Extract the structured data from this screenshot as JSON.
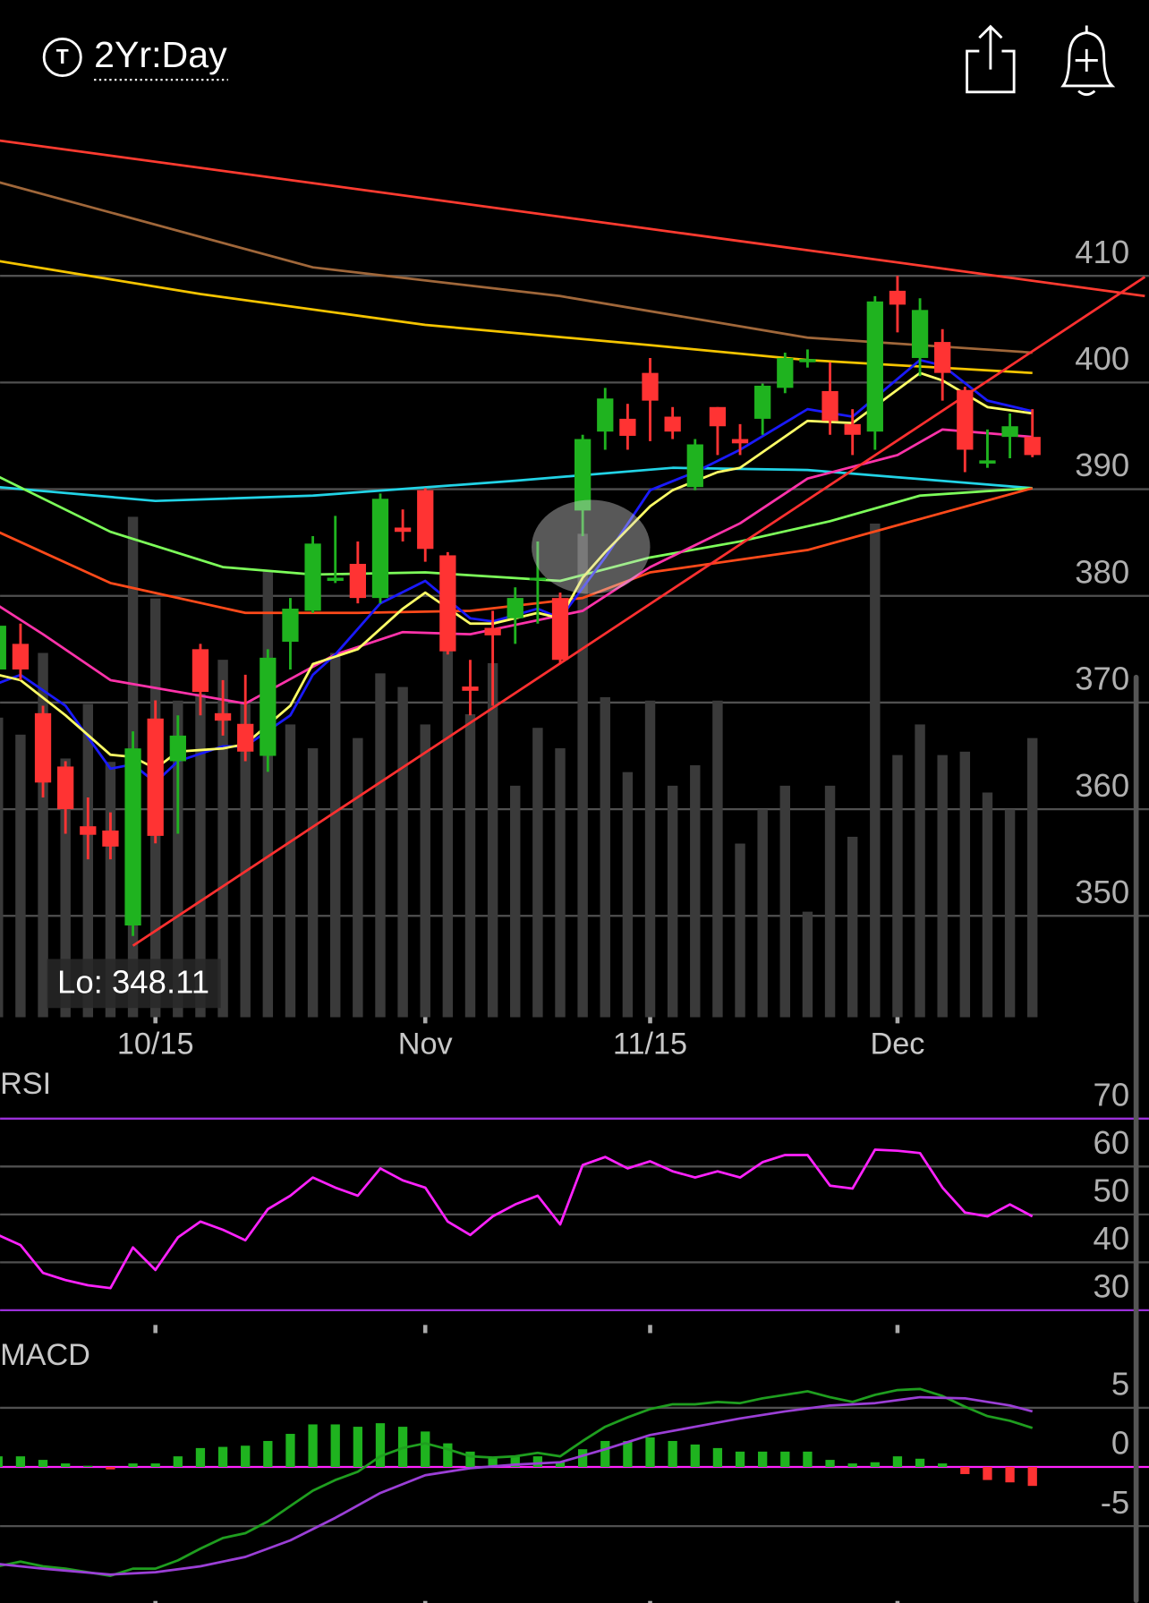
{
  "header": {
    "badge": "T",
    "timeframe": "2Yr:Day"
  },
  "chart_data": [
    {
      "type": "candlestick",
      "categories": [
        null,
        null,
        null,
        null,
        null,
        null,
        null,
        "10/15",
        null,
        null,
        null,
        null,
        null,
        null,
        null,
        null,
        null,
        null,
        null,
        "Nov",
        null,
        null,
        null,
        null,
        null,
        null,
        null,
        null,
        null,
        "11/15",
        null,
        null,
        null,
        null,
        null,
        null,
        null,
        null,
        null,
        null,
        "Dec",
        null,
        null,
        null,
        null,
        null,
        null
      ],
      "open": [
        373.1,
        375.5,
        369.0,
        364.0,
        358.4,
        358.0,
        349.1,
        368.5,
        364.5,
        375.0,
        369.0,
        368.0,
        365.0,
        375.7,
        378.6,
        381.4,
        383.0,
        379.8,
        386.4,
        389.9,
        383.8,
        371.5,
        377.0,
        377.9,
        381.5,
        379.8,
        388.0,
        395.4,
        396.6,
        400.9,
        396.8,
        390.2,
        397.7,
        394.7,
        396.6,
        399.5,
        401.9,
        399.2,
        396.1,
        395.4,
        408.6,
        402.3,
        403.8,
        399.3,
        392.4,
        394.9,
        394.9
      ],
      "high": [
        378.4,
        377.4,
        369.7,
        364.5,
        361.1,
        359.7,
        367.3,
        370.2,
        368.8,
        375.5,
        372.1,
        372.6,
        375.0,
        379.8,
        385.6,
        387.5,
        385.1,
        389.6,
        388.1,
        390.1,
        384.1,
        374.0,
        378.6,
        380.8,
        385.1,
        380.3,
        395.1,
        399.5,
        398.0,
        402.3,
        397.7,
        394.7,
        397.7,
        396.1,
        399.9,
        402.8,
        403.1,
        401.9,
        397.5,
        408.1,
        410.0,
        407.9,
        405.0,
        399.6,
        395.6,
        397.1,
        397.5
      ],
      "low": [
        372.6,
        372.1,
        361.1,
        357.7,
        355.3,
        355.3,
        348.11,
        356.8,
        357.7,
        368.8,
        366.9,
        364.5,
        363.5,
        373.1,
        378.4,
        381.2,
        379.3,
        379.3,
        385.1,
        383.2,
        374.5,
        368.8,
        369.7,
        375.5,
        377.4,
        373.6,
        385.6,
        393.7,
        393.7,
        394.5,
        394.7,
        389.9,
        393.2,
        393.2,
        395.1,
        399.0,
        401.4,
        395.1,
        393.2,
        393.7,
        404.7,
        400.6,
        398.3,
        391.6,
        392.0,
        392.9,
        393.0
      ],
      "close": [
        377.2,
        373.1,
        362.5,
        360.0,
        357.6,
        356.5,
        365.7,
        357.5,
        366.9,
        371.0,
        368.3,
        365.4,
        374.2,
        378.8,
        384.9,
        381.7,
        379.8,
        389.1,
        386.0,
        384.4,
        374.8,
        371.1,
        376.3,
        379.8,
        381.7,
        374.0,
        394.7,
        398.5,
        395.0,
        398.3,
        395.4,
        394.2,
        395.9,
        394.3,
        399.7,
        402.3,
        402.2,
        396.4,
        395.1,
        407.6,
        407.3,
        406.8,
        400.9,
        393.7,
        392.7,
        395.9,
        393.2
      ],
      "volume": [
        88,
        83,
        107,
        76,
        92,
        75,
        147,
        123,
        93,
        95,
        105,
        92,
        131,
        86,
        79,
        107,
        82,
        101,
        97,
        86,
        108,
        89,
        104,
        68,
        85,
        79,
        142,
        94,
        72,
        93,
        68,
        74,
        93,
        51,
        61,
        68,
        31,
        68,
        53,
        145,
        77,
        86,
        77,
        78,
        66,
        61,
        82
      ],
      "up_color": "#1fb31f",
      "down_color": "#ff3333",
      "volume_color": "#3a3a3a",
      "ylim": [
        340.5,
        423.4
      ],
      "yticks": [
        350,
        360,
        370,
        380,
        390,
        400,
        410
      ],
      "grid": true,
      "annotation": "Lo: 348.11",
      "overlays": [
        {
          "color": "#ff3b30",
          "x": [
            0,
            51
          ],
          "values": [
            422.7,
            408.1
          ]
        },
        {
          "color": "#a0673a",
          "x": [
            0,
            14,
            25,
            36,
            46
          ],
          "values": [
            418.8,
            410.8,
            408.1,
            404.2,
            402.8
          ]
        },
        {
          "color": "#f5c400",
          "x": [
            0,
            9,
            19,
            29,
            36,
            46
          ],
          "values": [
            411.4,
            408.3,
            405.4,
            403.5,
            402.1,
            400.9
          ]
        },
        {
          "color": "#22d3e6",
          "x": [
            0,
            7,
            14,
            23,
            30,
            36,
            46
          ],
          "values": [
            390.2,
            388.9,
            389.4,
            390.8,
            392.0,
            391.8,
            390.1
          ]
        },
        {
          "color": "#7dff5a",
          "x": [
            0,
            5,
            10,
            14,
            19,
            25,
            29,
            33,
            37,
            41,
            46
          ],
          "values": [
            391.2,
            386.0,
            382.7,
            382.0,
            382.2,
            381.4,
            383.6,
            385.1,
            387.0,
            389.4,
            390.1
          ]
        },
        {
          "color": "#ff4a1a",
          "x": [
            0,
            5,
            11,
            16,
            21,
            26,
            29,
            36,
            41,
            46
          ],
          "values": [
            386.0,
            381.2,
            378.4,
            378.4,
            378.6,
            379.8,
            382.2,
            384.3,
            387.2,
            390.1
          ]
        },
        {
          "color": "#ff33aa",
          "x": [
            0,
            2,
            5,
            11,
            15,
            18,
            21,
            26,
            29,
            33,
            36,
            40,
            42,
            46
          ],
          "values": [
            379.1,
            376.4,
            372.1,
            369.9,
            374.5,
            376.6,
            376.4,
            378.6,
            382.7,
            386.8,
            391.0,
            393.2,
            395.6,
            394.9
          ]
        },
        {
          "color": "#1a1aff",
          "x": [
            0,
            1,
            3,
            5,
            6,
            7,
            8,
            10,
            11,
            13,
            14,
            15,
            17,
            19,
            21,
            22,
            24,
            25,
            27,
            29,
            31,
            33,
            36,
            38,
            41,
            42,
            44,
            46
          ],
          "values": [
            371.8,
            372.6,
            369.7,
            363.8,
            364.2,
            362.5,
            364.5,
            365.9,
            365.9,
            368.8,
            372.6,
            374.5,
            379.3,
            381.4,
            377.9,
            377.6,
            378.8,
            377.9,
            383.6,
            389.9,
            391.6,
            393.7,
            397.5,
            396.8,
            402.1,
            401.6,
            398.3,
            397.3
          ]
        },
        {
          "color": "#ffff66",
          "x": [
            0,
            1,
            3,
            5,
            6,
            7,
            8,
            10,
            11,
            13,
            14,
            16,
            18,
            19,
            21,
            22,
            24,
            25,
            26,
            27,
            29,
            30,
            32,
            33,
            36,
            38,
            41,
            42,
            44,
            46
          ],
          "values": [
            372.6,
            372.1,
            368.8,
            365.1,
            364.9,
            363.8,
            365.4,
            365.7,
            366.1,
            369.7,
            373.6,
            375.0,
            378.8,
            380.3,
            377.4,
            377.4,
            378.4,
            377.9,
            381.7,
            384.1,
            388.4,
            389.9,
            391.6,
            392.0,
            396.4,
            396.2,
            400.9,
            400.2,
            397.7,
            397.1
          ]
        },
        {
          "color": "#ff3030",
          "x": [
            6,
            51
          ],
          "values": [
            347.2,
            409.9
          ]
        }
      ]
    },
    {
      "type": "line",
      "title": "RSI",
      "series": [
        {
          "color": "#ff22ff",
          "values": [
            45.7,
            43.6,
            37.8,
            36.3,
            35.2,
            34.6,
            43.1,
            38.4,
            45.2,
            48.5,
            46.8,
            44.6,
            51.1,
            53.9,
            57.7,
            55.6,
            53.9,
            59.6,
            57.1,
            55.6,
            48.5,
            45.7,
            49.6,
            52.1,
            53.9,
            47.9,
            60.3,
            62.0,
            59.6,
            61.1,
            59.0,
            57.7,
            59.0,
            57.7,
            60.9,
            62.4,
            62.4,
            56.0,
            55.4,
            63.5,
            63.3,
            62.8,
            55.6,
            50.4,
            49.6,
            52.1,
            49.6
          ]
        }
      ],
      "ylim": [
        26.5,
        80.5
      ],
      "yticks": [
        30,
        40,
        50,
        60,
        70
      ],
      "grid": true,
      "band_color": "#9b30d9"
    },
    {
      "type": "macd",
      "title": "MACD",
      "histogram": [
        0.9,
        0.9,
        0.6,
        0.3,
        0.1,
        -0.2,
        0.3,
        0.3,
        0.9,
        1.6,
        1.7,
        1.8,
        2.2,
        2.8,
        3.6,
        3.6,
        3.4,
        3.7,
        3.4,
        3.0,
        2.0,
        1.3,
        0.8,
        0.9,
        0.9,
        0.4,
        1.5,
        2.2,
        2.2,
        2.5,
        2.2,
        1.9,
        1.6,
        1.3,
        1.3,
        1.3,
        1.3,
        0.6,
        0.3,
        0.4,
        0.9,
        0.7,
        0.3,
        -0.6,
        -1.1,
        -1.3,
        -1.6
      ],
      "up_color": "#1fb31f",
      "down_color": "#ff3333",
      "series": [
        {
          "color": "#1f9e1f",
          "values": [
            -8.4,
            -8.0,
            -8.4,
            -8.6,
            -8.9,
            -9.2,
            -8.6,
            -8.6,
            -7.9,
            -6.9,
            -6.0,
            -5.6,
            -4.6,
            -3.3,
            -2.0,
            -1.1,
            -0.4,
            0.9,
            1.6,
            2.0,
            1.5,
            0.9,
            0.8,
            0.9,
            1.2,
            0.9,
            2.2,
            3.4,
            4.2,
            4.9,
            5.3,
            5.3,
            5.5,
            5.4,
            5.8,
            6.1,
            6.4,
            5.9,
            5.5,
            6.1,
            6.5,
            6.6,
            6.0,
            5.1,
            4.3,
            3.9,
            3.3
          ]
        },
        {
          "color": "#9b3fd6",
          "x": [
            0,
            2,
            5,
            7,
            9,
            11,
            13,
            15,
            17,
            19,
            21,
            23,
            25,
            27,
            29,
            31,
            33,
            35,
            37,
            39,
            41,
            43,
            45,
            46
          ],
          "values": [
            -8.2,
            -8.6,
            -9.1,
            -8.9,
            -8.4,
            -7.6,
            -6.2,
            -4.3,
            -2.2,
            -0.7,
            -0.1,
            0.2,
            0.4,
            1.5,
            2.7,
            3.4,
            4.1,
            4.7,
            5.2,
            5.4,
            5.9,
            5.8,
            5.2,
            4.7
          ]
        }
      ],
      "ylim": [
        -11.5,
        10.8
      ],
      "yticks": [
        -5,
        0,
        5
      ],
      "grid": true,
      "zero_color": "#ff22ff"
    }
  ]
}
